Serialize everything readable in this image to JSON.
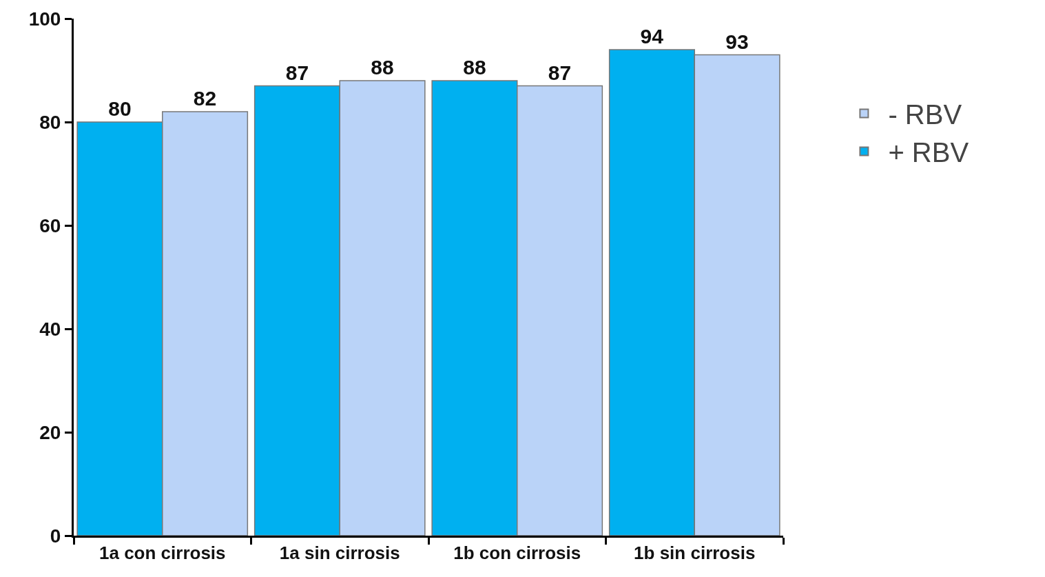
{
  "chart_data": {
    "type": "bar",
    "categories": [
      "1a con cirrosis",
      "1a sin cirrosis",
      "1b con cirrosis",
      "1b sin cirrosis"
    ],
    "series": [
      {
        "name": "+ RBV",
        "color": "#00b0f0",
        "values": [
          80,
          87,
          88,
          94
        ]
      },
      {
        "name": "- RBV",
        "color": "#bad3f8",
        "values": [
          82,
          88,
          87,
          93
        ]
      }
    ],
    "ylim": [
      0,
      100
    ],
    "yticks": [
      0,
      20,
      40,
      60,
      80,
      100
    ],
    "grid": false,
    "legend": "right",
    "data_labels": true
  }
}
